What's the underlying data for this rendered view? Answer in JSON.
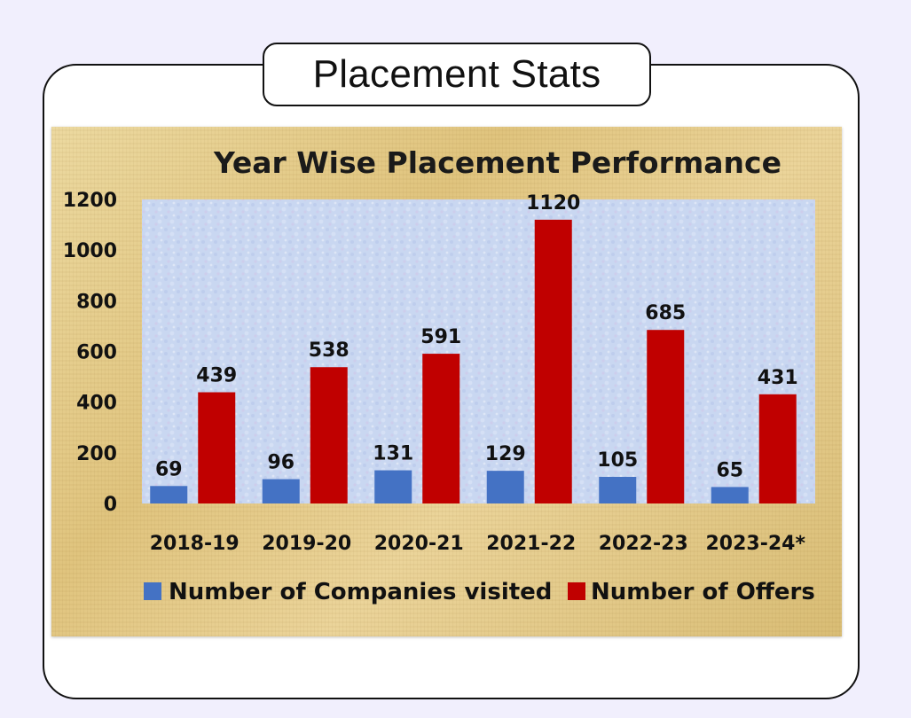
{
  "header": {
    "title": "Placement Stats"
  },
  "chart_data": {
    "type": "bar",
    "title": "Year Wise Placement Performance",
    "categories": [
      "2018-19",
      "2019-20",
      "2020-21",
      "2021-22",
      "2022-23",
      "2023-24*"
    ],
    "series": [
      {
        "name": "Number of Companies visited",
        "color": "#4472c4",
        "values": [
          69,
          96,
          131,
          129,
          105,
          65
        ]
      },
      {
        "name": "Number of Offers",
        "color": "#c00000",
        "values": [
          439,
          538,
          591,
          1120,
          685,
          431
        ]
      }
    ],
    "ylim": [
      0,
      1200
    ],
    "yticks": [
      0,
      200,
      400,
      600,
      800,
      1000,
      1200
    ],
    "legend": "bottom",
    "grid": false,
    "plot_background": "#c8d8f2",
    "frame_background": "#e6cf8f"
  }
}
